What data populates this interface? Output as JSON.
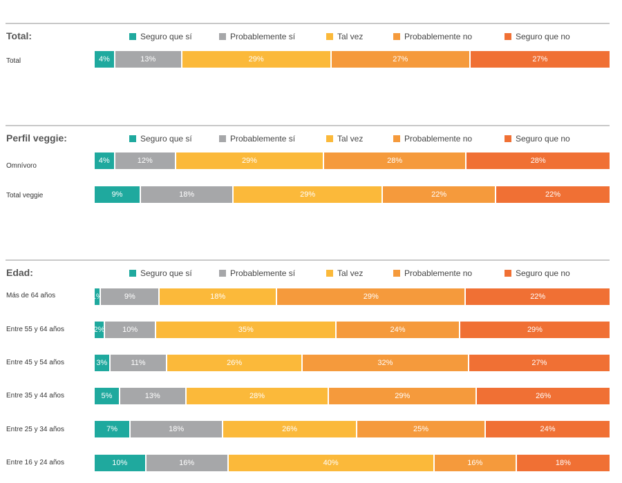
{
  "colors": {
    "seguro_si": "#1fa99e",
    "probablemente_si": "#a6a7a9",
    "tal_vez": "#fbb93a",
    "probablemente_no": "#f59a3c",
    "seguro_no": "#f07034"
  },
  "legend": [
    "Seguro que sí",
    "Probablemente sí",
    "Tal vez",
    "Probablemente no",
    "Seguro que no"
  ],
  "chart_data": [
    {
      "type": "bar",
      "orientation": "horizontal-stacked-100",
      "title": "Total:",
      "series_names": [
        "Seguro que sí",
        "Probablemente sí",
        "Tal vez",
        "Probablemente no",
        "Seguro que no"
      ],
      "categories": [
        "Total"
      ],
      "rows": [
        {
          "label": "Total",
          "values": [
            4,
            13,
            29,
            27,
            27
          ]
        }
      ]
    },
    {
      "type": "bar",
      "orientation": "horizontal-stacked-100",
      "title": "Perfil veggie:",
      "series_names": [
        "Seguro que sí",
        "Probablemente sí",
        "Tal vez",
        "Probablemente no",
        "Seguro que no"
      ],
      "categories": [
        "Omnívoro",
        "Total veggie"
      ],
      "rows": [
        {
          "label": "Omnívoro",
          "values": [
            4,
            12,
            29,
            28,
            28
          ]
        },
        {
          "label": "Total veggie",
          "values": [
            9,
            18,
            29,
            22,
            22
          ]
        }
      ]
    },
    {
      "type": "bar",
      "orientation": "horizontal-stacked-100",
      "title": "Edad:",
      "series_names": [
        "Seguro que sí",
        "Probablemente sí",
        "Tal vez",
        "Probablemente no",
        "Seguro que no"
      ],
      "categories": [
        "Más de 64 años",
        "Entre 55 y 64 años",
        "Entre 45 y 54 años",
        "Entre 35 y 44 años",
        "Entre 25 y 34 años",
        "Entre 16 y 24 años"
      ],
      "rows": [
        {
          "label": "Más de 64 años",
          "values": [
            1,
            9,
            18,
            29,
            22
          ]
        },
        {
          "label": "Entre 55 y 64 años",
          "values": [
            2,
            10,
            35,
            24,
            29
          ]
        },
        {
          "label": "Entre 45 y 54 años",
          "values": [
            3,
            11,
            26,
            32,
            27
          ]
        },
        {
          "label": "Entre 35 y 44 años",
          "values": [
            5,
            13,
            28,
            29,
            26
          ]
        },
        {
          "label": "Entre 25 y 34 años",
          "values": [
            7,
            18,
            26,
            25,
            24
          ]
        },
        {
          "label": "Entre 16 y 24 años",
          "values": [
            10,
            16,
            40,
            16,
            18
          ]
        }
      ]
    }
  ]
}
